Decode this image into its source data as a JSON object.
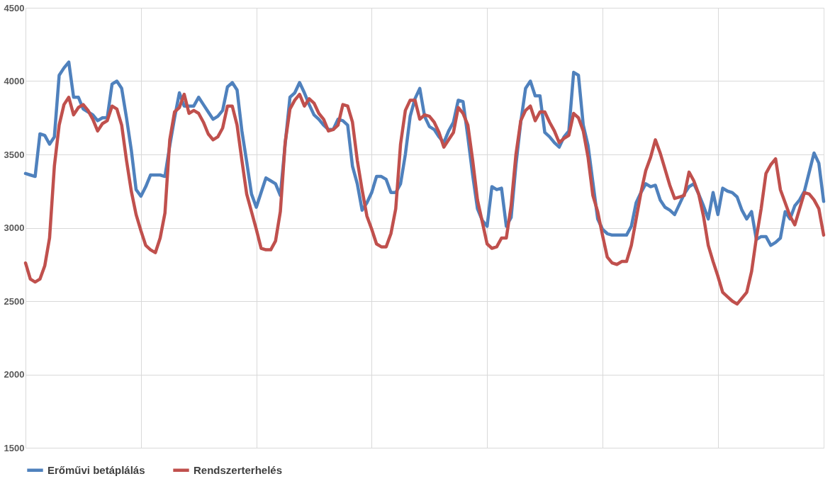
{
  "chart_data": {
    "type": "line",
    "categories": [
      null,
      null,
      null,
      null,
      null,
      null,
      null,
      null,
      null,
      null,
      null,
      null,
      null,
      null,
      null,
      null,
      null,
      null,
      null,
      null,
      null,
      null,
      null,
      null,
      null,
      null,
      null,
      null,
      null,
      null,
      null,
      null,
      null,
      null,
      null,
      null,
      null,
      null,
      null,
      null,
      null,
      null,
      null,
      null,
      null,
      null,
      null,
      null,
      null,
      null,
      null,
      null,
      null,
      null,
      null,
      null,
      null,
      null,
      null,
      null,
      null,
      null,
      null,
      null,
      null,
      null,
      null,
      null,
      null,
      null,
      null,
      null,
      null,
      null,
      null,
      null,
      null,
      null,
      null,
      null,
      null,
      null,
      null,
      null,
      null,
      null,
      null,
      null,
      null,
      null,
      null,
      null,
      null,
      null,
      null,
      null,
      null,
      null,
      null,
      null,
      null,
      null,
      null,
      null,
      null,
      null,
      null,
      null,
      null,
      null,
      null,
      null,
      null,
      null,
      null,
      null,
      null,
      null,
      null,
      null,
      null,
      null,
      null,
      null,
      null,
      null,
      null,
      null,
      null,
      null,
      null,
      null,
      null,
      null,
      null,
      null,
      null,
      null,
      null,
      null,
      null,
      null,
      null,
      null,
      null,
      null,
      null,
      null,
      null,
      null,
      null,
      null,
      null,
      null,
      null,
      null,
      null,
      null,
      null,
      null,
      null,
      null,
      null,
      null,
      null,
      null,
      null
    ],
    "series": [
      {
        "name": "Erőművi betáplálás",
        "color": "#4f81bd",
        "values": [
          3370,
          3360,
          3350,
          3640,
          3630,
          3570,
          3620,
          4040,
          4090,
          4130,
          3890,
          3890,
          3810,
          3790,
          3770,
          3730,
          3750,
          3750,
          3980,
          4000,
          3950,
          3750,
          3530,
          3260,
          3215,
          3280,
          3360,
          3360,
          3360,
          3350,
          3560,
          3750,
          3920,
          3830,
          3830,
          3830,
          3890,
          3840,
          3790,
          3740,
          3760,
          3800,
          3960,
          3990,
          3940,
          3660,
          3450,
          3230,
          3140,
          3240,
          3340,
          3320,
          3300,
          3220,
          3570,
          3890,
          3920,
          3990,
          3920,
          3840,
          3770,
          3740,
          3700,
          3670,
          3670,
          3740,
          3730,
          3700,
          3420,
          3300,
          3120,
          3170,
          3240,
          3350,
          3350,
          3330,
          3240,
          3240,
          3300,
          3500,
          3760,
          3880,
          3950,
          3760,
          3690,
          3670,
          3620,
          3580,
          3660,
          3720,
          3870,
          3860,
          3620,
          3360,
          3130,
          3050,
          3010,
          3280,
          3260,
          3270,
          3010,
          3070,
          3430,
          3720,
          3950,
          4000,
          3900,
          3900,
          3650,
          3620,
          3580,
          3550,
          3620,
          3660,
          4060,
          4040,
          3700,
          3560,
          3310,
          3060,
          2990,
          2960,
          2950,
          2950,
          2950,
          2950,
          3010,
          3170,
          3240,
          3300,
          3280,
          3290,
          3190,
          3140,
          3120,
          3090,
          3160,
          3230,
          3280,
          3300,
          3230,
          3150,
          3060,
          3240,
          3090,
          3270,
          3250,
          3240,
          3210,
          3120,
          3060,
          3110,
          2920,
          2940,
          2940,
          2880,
          2900,
          2930,
          3110,
          3060,
          3150,
          3190,
          3250,
          3380,
          3510,
          3440,
          3180
        ]
      },
      {
        "name": "Rendszerterhelés",
        "color": "#c0504d",
        "values": [
          2760,
          2650,
          2630,
          2650,
          2740,
          2930,
          3420,
          3700,
          3840,
          3890,
          3770,
          3820,
          3840,
          3800,
          3740,
          3660,
          3710,
          3730,
          3830,
          3810,
          3700,
          3460,
          3250,
          3090,
          2980,
          2880,
          2850,
          2830,
          2930,
          3100,
          3600,
          3790,
          3820,
          3910,
          3780,
          3800,
          3780,
          3720,
          3640,
          3600,
          3620,
          3680,
          3830,
          3830,
          3700,
          3460,
          3230,
          3110,
          2990,
          2860,
          2850,
          2850,
          2910,
          3110,
          3580,
          3810,
          3870,
          3910,
          3830,
          3880,
          3850,
          3780,
          3740,
          3660,
          3670,
          3700,
          3840,
          3830,
          3720,
          3460,
          3260,
          3080,
          2990,
          2890,
          2870,
          2870,
          2960,
          3130,
          3570,
          3800,
          3870,
          3870,
          3740,
          3770,
          3760,
          3720,
          3650,
          3550,
          3600,
          3650,
          3820,
          3780,
          3700,
          3460,
          3190,
          3040,
          2890,
          2860,
          2870,
          2930,
          2930,
          3150,
          3500,
          3730,
          3800,
          3830,
          3730,
          3790,
          3790,
          3720,
          3660,
          3580,
          3610,
          3630,
          3780,
          3750,
          3660,
          3480,
          3220,
          3110,
          2950,
          2800,
          2760,
          2750,
          2770,
          2770,
          2880,
          3060,
          3240,
          3390,
          3480,
          3600,
          3510,
          3400,
          3290,
          3200,
          3210,
          3220,
          3380,
          3320,
          3230,
          3080,
          2880,
          2770,
          2670,
          2560,
          2530,
          2500,
          2480,
          2520,
          2560,
          2700,
          2930,
          3130,
          3370,
          3430,
          3470,
          3260,
          3170,
          3080,
          3020,
          3130,
          3240,
          3230,
          3190,
          3130,
          2950
        ]
      }
    ],
    "ylim": [
      1500,
      4500
    ],
    "yticks": [
      1500,
      2000,
      2500,
      3000,
      3500,
      4000,
      4500
    ],
    "grid": true,
    "legend": "bottom",
    "tick_labels": "y",
    "line_style": "solid",
    "marker": "none"
  }
}
